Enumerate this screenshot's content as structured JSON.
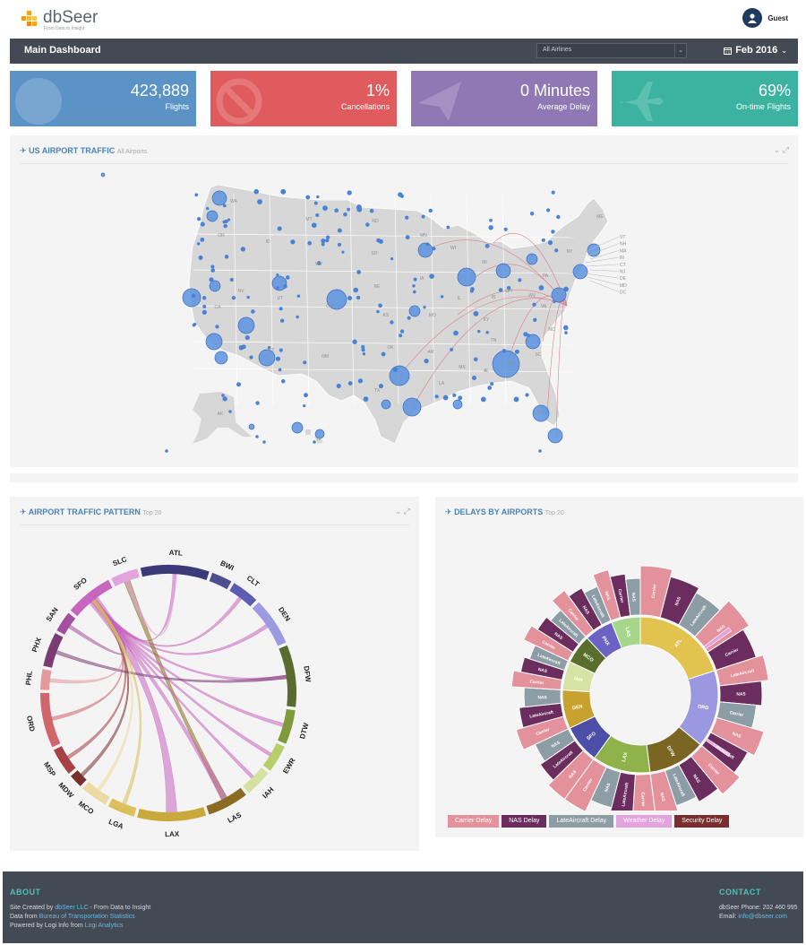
{
  "header": {
    "brand": "dbSeer",
    "tagline": "From Data to Insight",
    "user_name": "Guest"
  },
  "titlebar": {
    "title": "Main Dashboard",
    "airline_filter": "All Airlines",
    "date_label": "Feb 2016"
  },
  "kpis": [
    {
      "value": "423,889",
      "label": "Flights",
      "color": "#5b93c7",
      "icon": "globe-icon"
    },
    {
      "value": "1%",
      "label": "Cancellations",
      "color": "#e05b5d",
      "icon": "ban-icon"
    },
    {
      "value": "0 Minutes",
      "label": "Average Delay",
      "color": "#8e79b5",
      "icon": "paper-plane-icon"
    },
    {
      "value": "69%",
      "label": "On-time Flights",
      "color": "#3bb3a0",
      "icon": "plane-icon"
    }
  ],
  "map_panel": {
    "title": "US AIRPORT TRAFFIC",
    "subtitle": "All Airports",
    "states": [
      "WA",
      "OR",
      "CA",
      "NV",
      "ID",
      "MT",
      "WY",
      "UT",
      "CO",
      "AZ",
      "NM",
      "ND",
      "SD",
      "NE",
      "KS",
      "OK",
      "TX",
      "MN",
      "IA",
      "MO",
      "AR",
      "LA",
      "WI",
      "IL",
      "MI",
      "IN",
      "OH",
      "KY",
      "TN",
      "MS",
      "AL",
      "GA",
      "FL",
      "SC",
      "NC",
      "VA",
      "WV",
      "PA",
      "NY",
      "ME",
      "AK",
      "HI"
    ],
    "ne_states": [
      "VT",
      "NH",
      "MA",
      "RI",
      "CT",
      "NJ",
      "DE",
      "MD",
      "DC"
    ]
  },
  "chord_panel": {
    "title": "AIRPORT TRAFFIC PATTERN",
    "subtitle": "Top 20",
    "airports": [
      {
        "code": "ATL",
        "color": "#3b3a78",
        "weight": 10
      },
      {
        "code": "BWI",
        "color": "#4e4d92",
        "weight": 3
      },
      {
        "code": "CLT",
        "color": "#5c5cb5",
        "weight": 4
      },
      {
        "code": "DEN",
        "color": "#9c9ae0",
        "weight": 7
      },
      {
        "code": "DFW",
        "color": "#5a6b2f",
        "weight": 9
      },
      {
        "code": "DTW",
        "color": "#7e9a3b",
        "weight": 5
      },
      {
        "code": "EWR",
        "color": "#b7cf6a",
        "weight": 4
      },
      {
        "code": "IAH",
        "color": "#d4e3a1",
        "weight": 4
      },
      {
        "code": "LAS",
        "color": "#8b6b21",
        "weight": 6
      },
      {
        "code": "LAX",
        "color": "#c9a93b",
        "weight": 10
      },
      {
        "code": "LGA",
        "color": "#dcc05a",
        "weight": 4
      },
      {
        "code": "MCO",
        "color": "#ecd9a3",
        "weight": 4
      },
      {
        "code": "MDW",
        "color": "#7a2e2e",
        "weight": 2
      },
      {
        "code": "MSP",
        "color": "#a84046",
        "weight": 4
      },
      {
        "code": "ORD",
        "color": "#d0656c",
        "weight": 8
      },
      {
        "code": "PHL",
        "color": "#e39a9d",
        "weight": 3
      },
      {
        "code": "PHX",
        "color": "#7b3c74",
        "weight": 5
      },
      {
        "code": "SAN",
        "color": "#a450a0",
        "weight": 3
      },
      {
        "code": "SFO",
        "color": "#c865c0",
        "weight": 7
      },
      {
        "code": "SLC",
        "color": "#e3a4de",
        "weight": 4
      }
    ]
  },
  "sunburst_panel": {
    "title": "DELAYS BY AIRPORTS",
    "subtitle": "Top 20",
    "inner": [
      {
        "code": "ATL",
        "color": "#e3c34f",
        "weight": 10
      },
      {
        "code": "ORD",
        "color": "#9a98e0",
        "weight": 8
      },
      {
        "code": "DFW",
        "color": "#7a6523",
        "weight": 6
      },
      {
        "code": "LAX",
        "color": "#8fb34a",
        "weight": 6
      },
      {
        "code": "SFO",
        "color": "#4d4ea8",
        "weight": 4
      },
      {
        "code": "DEN",
        "color": "#c9a12e",
        "weight": 4
      },
      {
        "code": "IAH",
        "color": "#d7e3a4",
        "weight": 3
      },
      {
        "code": "MCO",
        "color": "#5a6e2c",
        "weight": 3
      },
      {
        "code": "PHX",
        "color": "#6b63c4",
        "weight": 3
      },
      {
        "code": "LAS",
        "color": "#a6d68c",
        "weight": 3
      }
    ],
    "outer_labels": [
      "Carrier",
      "NAS",
      "LateAircraft",
      "NAS",
      "Carrier",
      "LateAircraft",
      "NAS",
      "Carrier",
      "NAS",
      "LateAircraft",
      "Carrier",
      "NAS",
      "LateAircraft",
      "NAS",
      "Carrier",
      "LateAircraft",
      "NAS",
      "Carrier",
      "NAS",
      "LateAircraft",
      "NAS",
      "Carrier",
      "LateAircraft",
      "NAS",
      "Carrier",
      "NAS",
      "LateAircraft",
      "Carrier",
      "NAS",
      "LateAircraft",
      "Carrier",
      "NAS",
      "LateAircraft",
      "NAS",
      "Carrier",
      "NAS",
      "LateAircraft",
      "NAS",
      "Carrier"
    ],
    "legend": [
      {
        "label": "Carrier Delay",
        "color": "#e3919a"
      },
      {
        "label": "NAS Delay",
        "color": "#6b2c5e"
      },
      {
        "label": "LateAircraft Delay",
        "color": "#8d9da6"
      },
      {
        "label": "Weather Delay",
        "color": "#e3a4de"
      },
      {
        "label": "Security Delay",
        "color": "#7a2e2e"
      }
    ]
  },
  "footer": {
    "about_heading": "ABOUT",
    "created_prefix": "Site Created by",
    "created_link": "dbSeer LLC",
    "created_suffix": "- From Data to Insight",
    "data_prefix": "Data from",
    "data_link": "Bureau of Transportation Statistics",
    "powered_prefix": "Powered by Logi Info from",
    "powered_link": "Logi Analytics",
    "contact_heading": "CONTACT",
    "phone": "dbSeer Phone: 202 460 995",
    "email_prefix": "Email:",
    "email_link": "info@dbseer.com"
  }
}
